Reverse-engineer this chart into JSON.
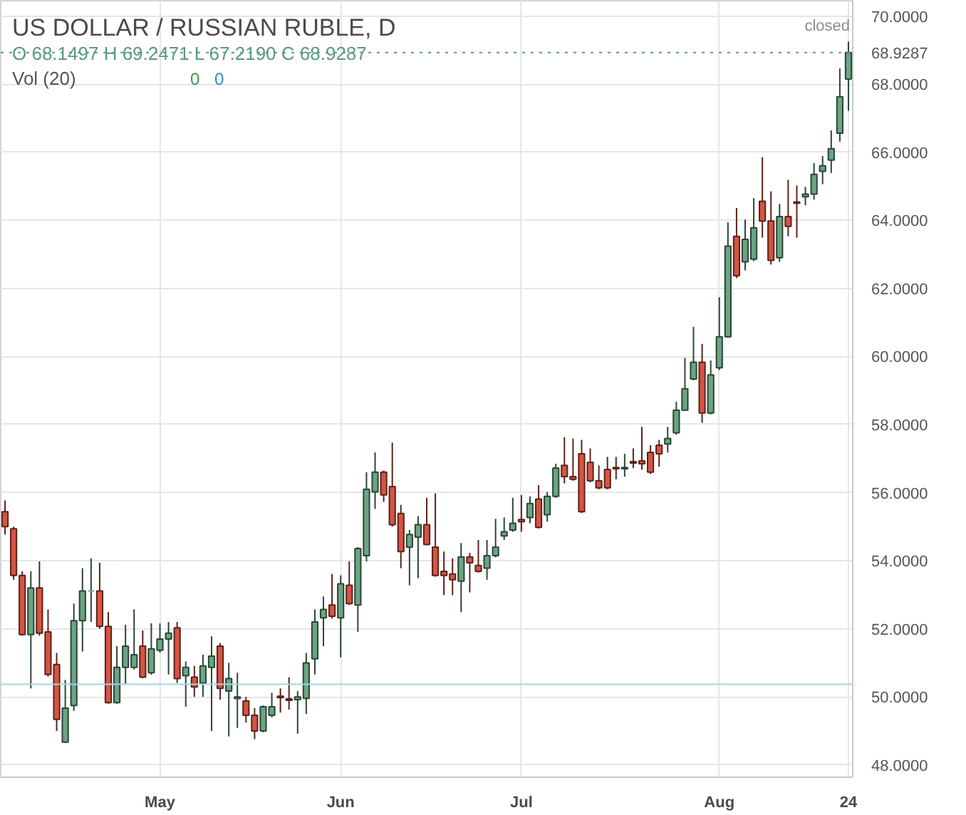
{
  "chart_data": {
    "type": "candlestick",
    "title": "US DOLLAR / RUSSIAN RUBLE, D",
    "annotations": [
      "closed",
      "O 68.1497 H 69.2471 L 67.2190 C 68.9287",
      "Vol (20)",
      "0",
      "0"
    ],
    "categories": [
      null,
      null,
      null,
      null,
      null,
      null,
      null,
      null,
      null,
      null,
      null,
      null,
      null,
      null,
      null,
      null,
      null,
      null,
      "May",
      null,
      null,
      null,
      null,
      null,
      null,
      null,
      null,
      null,
      null,
      null,
      null,
      null,
      null,
      null,
      null,
      null,
      null,
      null,
      null,
      "Jun",
      null,
      null,
      null,
      null,
      null,
      null,
      null,
      null,
      null,
      null,
      null,
      null,
      null,
      null,
      null,
      null,
      null,
      null,
      null,
      null,
      "Jul",
      null,
      null,
      null,
      null,
      null,
      null,
      null,
      null,
      null,
      null,
      null,
      null,
      null,
      null,
      null,
      null,
      null,
      null,
      null,
      null,
      null,
      null,
      "Aug",
      null,
      null,
      null,
      null,
      null,
      null,
      null,
      null,
      null,
      null,
      null,
      null,
      null,
      null,
      "24"
    ],
    "ohlc": [
      [
        55.44,
        55.77,
        54.77,
        55.0
      ],
      [
        54.94,
        55.0,
        53.44,
        53.57
      ],
      [
        53.57,
        53.69,
        51.8,
        51.83
      ],
      [
        51.83,
        53.69,
        50.25,
        53.2
      ],
      [
        53.2,
        53.98,
        51.8,
        51.87
      ],
      [
        51.91,
        52.57,
        50.6,
        50.66
      ],
      [
        50.95,
        51.29,
        49.0,
        49.34
      ],
      [
        48.67,
        50.5,
        48.65,
        49.67
      ],
      [
        49.75,
        52.74,
        49.59,
        52.24
      ],
      [
        52.24,
        53.78,
        51.33,
        53.11
      ],
      [
        53.11,
        54.07,
        52.2,
        53.11
      ],
      [
        53.11,
        53.94,
        52.0,
        52.07
      ],
      [
        52.07,
        52.49,
        49.8,
        49.83
      ],
      [
        49.83,
        51.49,
        49.8,
        50.87
      ],
      [
        50.87,
        52.12,
        50.37,
        51.49
      ],
      [
        50.87,
        52.57,
        50.8,
        51.24
      ],
      [
        51.49,
        51.95,
        50.55,
        50.58
      ],
      [
        50.71,
        52.16,
        50.65,
        51.41
      ],
      [
        51.37,
        52.16,
        51.3,
        51.7
      ],
      [
        51.7,
        52.2,
        50.66,
        51.87
      ],
      [
        52.03,
        52.2,
        50.41,
        50.54
      ],
      [
        50.62,
        51.04,
        49.71,
        50.87
      ],
      [
        50.58,
        50.91,
        50.0,
        50.29
      ],
      [
        50.41,
        51.24,
        50.0,
        50.91
      ],
      [
        50.87,
        51.78,
        49.0,
        51.2
      ],
      [
        51.49,
        51.58,
        49.92,
        50.25
      ],
      [
        50.17,
        51.0,
        48.84,
        50.54
      ],
      [
        49.95,
        50.71,
        49.09,
        50.0
      ],
      [
        49.88,
        50.0,
        49.25,
        49.46
      ],
      [
        49.46,
        49.67,
        48.76,
        49.0
      ],
      [
        49.0,
        49.75,
        48.96,
        49.71
      ],
      [
        49.46,
        50.12,
        49.4,
        49.71
      ],
      [
        50.02,
        50.25,
        49.54,
        49.98
      ],
      [
        49.94,
        50.58,
        49.63,
        49.9
      ],
      [
        49.92,
        50.17,
        48.92,
        50.0
      ],
      [
        49.96,
        51.29,
        49.5,
        51.0
      ],
      [
        51.12,
        52.57,
        50.66,
        52.2
      ],
      [
        52.32,
        52.95,
        51.49,
        52.57
      ],
      [
        52.7,
        53.61,
        52.3,
        52.37
      ],
      [
        52.32,
        53.57,
        51.16,
        53.32
      ],
      [
        53.28,
        53.98,
        52.7,
        52.74
      ],
      [
        52.7,
        54.4,
        51.91,
        54.36
      ],
      [
        54.15,
        56.6,
        53.98,
        56.1
      ],
      [
        56.02,
        57.18,
        55.52,
        56.6
      ],
      [
        56.6,
        56.65,
        55.73,
        55.93
      ],
      [
        56.18,
        57.47,
        55.0,
        55.06
      ],
      [
        55.39,
        55.64,
        53.78,
        54.27
      ],
      [
        54.4,
        54.9,
        53.28,
        54.77
      ],
      [
        54.69,
        55.31,
        53.49,
        55.06
      ],
      [
        55.06,
        55.85,
        54.45,
        54.48
      ],
      [
        54.4,
        55.98,
        53.53,
        53.57
      ],
      [
        53.69,
        54.27,
        52.99,
        53.57
      ],
      [
        53.61,
        54.07,
        52.99,
        53.44
      ],
      [
        53.4,
        54.52,
        52.49,
        54.11
      ],
      [
        54.11,
        54.23,
        53.07,
        53.94
      ],
      [
        53.86,
        54.61,
        53.65,
        53.69
      ],
      [
        53.78,
        54.61,
        53.44,
        54.15
      ],
      [
        54.15,
        55.23,
        54.1,
        54.4
      ],
      [
        54.73,
        55.27,
        54.61,
        54.85
      ],
      [
        54.9,
        55.85,
        54.85,
        55.1
      ],
      [
        55.21,
        55.93,
        54.85,
        55.15
      ],
      [
        55.27,
        55.89,
        55.1,
        55.68
      ],
      [
        55.81,
        56.22,
        54.95,
        54.98
      ],
      [
        55.35,
        56.02,
        55.15,
        55.89
      ],
      [
        55.89,
        56.85,
        55.85,
        56.72
      ],
      [
        56.8,
        57.63,
        56.27,
        56.47
      ],
      [
        56.47,
        57.59,
        56.35,
        56.39
      ],
      [
        57.14,
        57.55,
        55.4,
        55.44
      ],
      [
        56.89,
        57.3,
        56.3,
        56.35
      ],
      [
        56.35,
        56.8,
        56.1,
        56.14
      ],
      [
        56.68,
        57.05,
        56.1,
        56.14
      ],
      [
        56.74,
        57.05,
        56.39,
        56.7
      ],
      [
        56.7,
        57.14,
        56.47,
        56.74
      ],
      [
        56.91,
        57.3,
        56.72,
        56.87
      ],
      [
        56.93,
        57.93,
        56.68,
        56.85
      ],
      [
        57.18,
        57.39,
        56.55,
        56.6
      ],
      [
        57.39,
        57.55,
        56.76,
        57.14
      ],
      [
        57.43,
        57.93,
        57.18,
        57.59
      ],
      [
        57.76,
        58.67,
        57.7,
        58.42
      ],
      [
        58.42,
        59.96,
        58.4,
        59.05
      ],
      [
        59.34,
        60.87,
        59.3,
        59.83
      ],
      [
        59.83,
        60.37,
        58.05,
        58.34
      ],
      [
        58.34,
        59.88,
        58.3,
        59.46
      ],
      [
        59.67,
        61.74,
        59.6,
        60.58
      ],
      [
        60.58,
        63.94,
        60.55,
        63.24
      ],
      [
        63.53,
        64.36,
        62.3,
        62.37
      ],
      [
        62.78,
        64.02,
        62.53,
        63.44
      ],
      [
        62.86,
        64.65,
        62.8,
        63.78
      ],
      [
        64.56,
        65.85,
        63.49,
        63.98
      ],
      [
        63.98,
        64.85,
        62.7,
        62.82
      ],
      [
        62.9,
        64.48,
        62.78,
        64.11
      ],
      [
        64.11,
        65.19,
        63.53,
        63.82
      ],
      [
        64.54,
        65.02,
        63.49,
        64.5
      ],
      [
        64.69,
        64.98,
        64.44,
        64.77
      ],
      [
        64.77,
        65.68,
        64.61,
        65.35
      ],
      [
        65.44,
        65.89,
        65.06,
        65.6
      ],
      [
        65.77,
        66.64,
        65.39,
        66.1
      ],
      [
        66.56,
        68.46,
        66.31,
        67.63
      ],
      [
        68.1497,
        69.2471,
        67.219,
        68.9287
      ]
    ],
    "colors": [
      "#d75442",
      "#d75442",
      "#d75442",
      "#6ba583",
      "#d75442",
      "#d75442",
      "#d75442",
      "#6ba583",
      "#6ba583",
      "#6ba583",
      "#6ba583",
      "#d75442",
      "#d75442",
      "#6ba583",
      "#6ba583",
      "#6ba583",
      "#d75442",
      "#6ba583",
      "#6ba583",
      "#6ba583",
      "#d75442",
      "#6ba583",
      "#d75442",
      "#6ba583",
      "#6ba583",
      "#d75442",
      "#6ba583",
      "#6ba583",
      "#d75442",
      "#d75442",
      "#6ba583",
      "#6ba583",
      "#d75442",
      "#d75442",
      "#6ba583",
      "#6ba583",
      "#6ba583",
      "#6ba583",
      "#d75442",
      "#6ba583",
      "#d75442",
      "#6ba583",
      "#6ba583",
      "#6ba583",
      "#d75442",
      "#d75442",
      "#d75442",
      "#6ba583",
      "#6ba583",
      "#d75442",
      "#d75442",
      "#d75442",
      "#d75442",
      "#6ba583",
      "#d75442",
      "#d75442",
      "#6ba583",
      "#6ba583",
      "#6ba583",
      "#6ba583",
      "#d75442",
      "#6ba583",
      "#d75442",
      "#6ba583",
      "#6ba583",
      "#d75442",
      "#d75442",
      "#d75442",
      "#d75442",
      "#d75442",
      "#d75442",
      "#d75442",
      "#6ba583",
      "#d75442",
      "#d75442",
      "#d75442",
      "#d75442",
      "#6ba583",
      "#6ba583",
      "#6ba583",
      "#6ba583",
      "#d75442",
      "#6ba583",
      "#6ba583",
      "#6ba583",
      "#d75442",
      "#6ba583",
      "#6ba583",
      "#d75442",
      "#d75442",
      "#6ba583",
      "#d75442",
      "#d75442",
      "#6ba583",
      "#6ba583",
      "#6ba583",
      "#6ba583",
      "#6ba583",
      "#6ba583"
    ],
    "ylim": [
      47.64,
      70.45
    ],
    "yticks": [
      {
        "value": 48,
        "label": "48.0000"
      },
      {
        "value": 50,
        "label": "50.0000"
      },
      {
        "value": 52,
        "label": "52.0000"
      },
      {
        "value": 54,
        "label": "54.0000"
      },
      {
        "value": 56,
        "label": "56.0000"
      },
      {
        "value": 58,
        "label": "58.0000"
      },
      {
        "value": 60,
        "label": "60.0000"
      },
      {
        "value": 62,
        "label": "62.0000"
      },
      {
        "value": 64,
        "label": "64.0000"
      },
      {
        "value": 66,
        "label": "66.0000"
      },
      {
        "value": 68,
        "label": "68.0000"
      },
      {
        "value": 70,
        "label": "70.0000"
      }
    ],
    "ref_lines": [
      {
        "axis": "y",
        "value": 68.9287,
        "label": "68.9287",
        "color": "#5b9a7c",
        "line_style": "dotted"
      },
      {
        "axis": "y",
        "value": 50.37,
        "color": "#a3d6e0",
        "line_style": "solid"
      }
    ],
    "grid": true
  }
}
